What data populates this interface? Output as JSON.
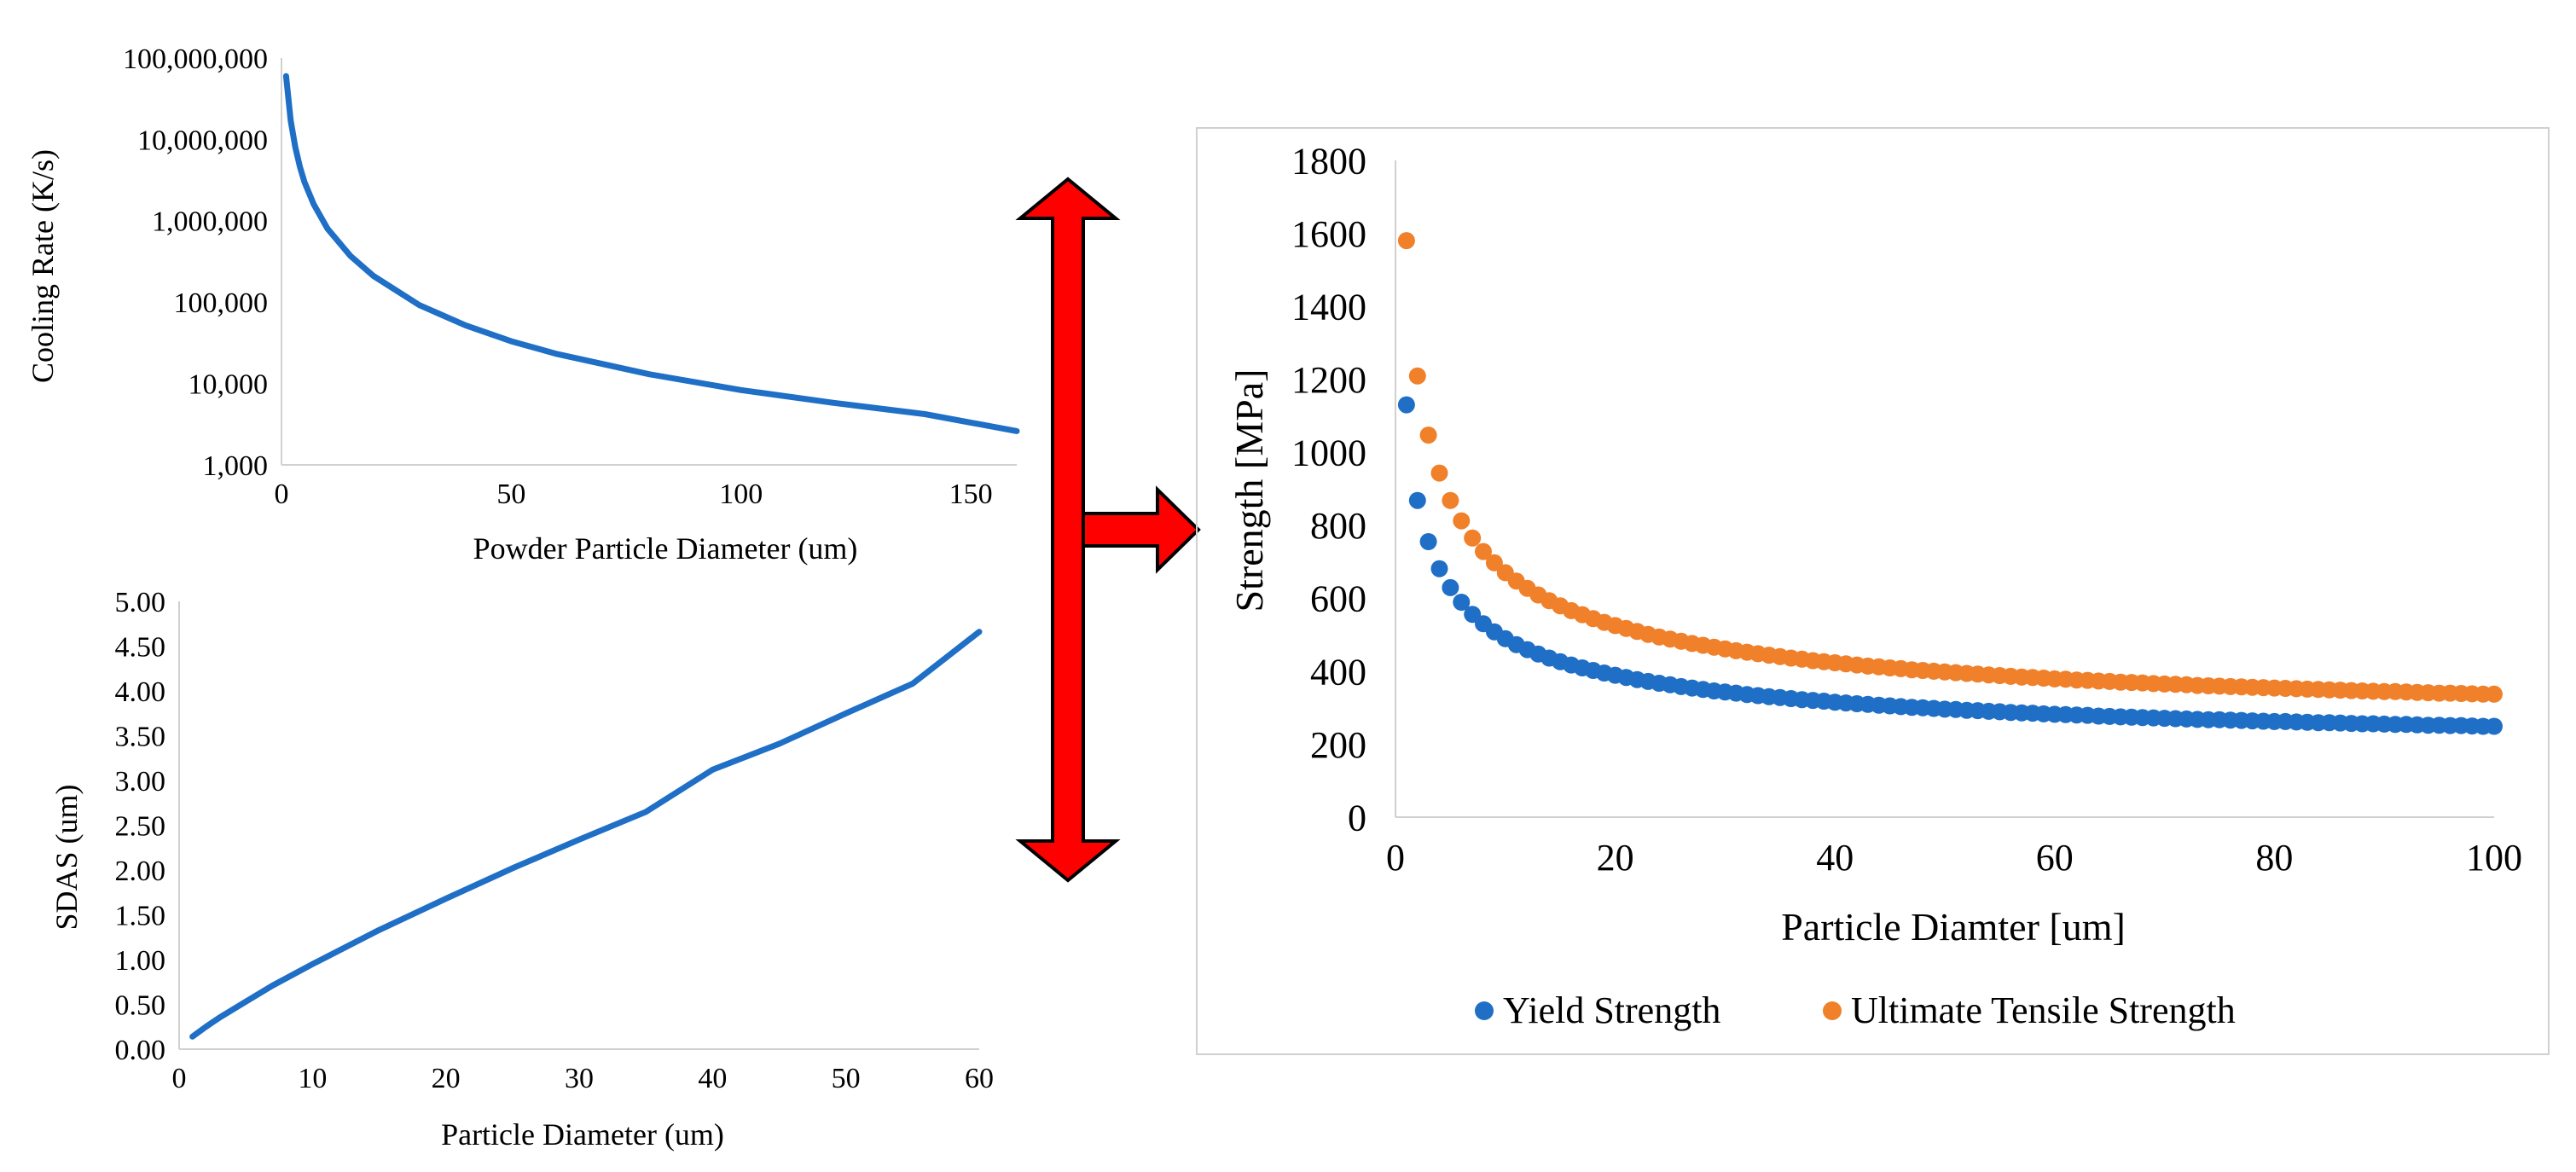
{
  "colors": {
    "primary_line": "#1f6fc6",
    "yield": "#1f6fc6",
    "uts": "#f0802a",
    "arrow_fill": "#ff0000",
    "arrow_stroke": "#000000",
    "axis": "#d0d0d0",
    "frame": "#d0d0d0"
  },
  "chart_data": [
    {
      "id": "cooling",
      "type": "line",
      "title": "",
      "xlabel": "Powder Particle Diameter (um)",
      "ylabel": "Cooling Rate (K/s)",
      "yscale": "log",
      "xlim": [
        0,
        160
      ],
      "ylim": [
        1000,
        100000000
      ],
      "xticks": [
        0,
        50,
        100,
        150
      ],
      "yticks": [
        1000,
        10000,
        100000,
        1000000,
        10000000,
        100000000
      ],
      "xtick_labels": [
        "0",
        "50",
        "100",
        "150"
      ],
      "ytick_labels": [
        "1,000",
        "10,000",
        "100,000",
        "1,000,000",
        "10,000,000",
        "100,000,000"
      ],
      "series": [
        {
          "name": "Cooling Rate",
          "x": [
            1,
            2,
            3,
            4,
            5,
            7,
            10,
            15,
            20,
            30,
            40,
            50,
            60,
            80,
            100,
            120,
            140,
            160
          ],
          "y": [
            60000000,
            17000000,
            8000000,
            4600000,
            3000000,
            1600000,
            800000,
            370000,
            210000,
            92000,
            52000,
            33000,
            23000,
            13000,
            8300,
            5800,
            4200,
            2600
          ]
        }
      ]
    },
    {
      "id": "sdas",
      "type": "line",
      "title": "",
      "xlabel": "Particle Diameter (um)",
      "ylabel": "SDAS (um)",
      "xlim": [
        0,
        60
      ],
      "ylim": [
        0,
        5
      ],
      "xticks": [
        0,
        10,
        20,
        30,
        40,
        50,
        60
      ],
      "yticks": [
        0,
        0.5,
        1,
        1.5,
        2,
        2.5,
        3,
        3.5,
        4,
        4.5,
        5
      ],
      "xtick_labels": [
        "0",
        "10",
        "20",
        "30",
        "40",
        "50",
        "60"
      ],
      "ytick_labels": [
        "0.00",
        "0.50",
        "1.00",
        "1.50",
        "2.00",
        "2.50",
        "3.00",
        "3.50",
        "4.00",
        "4.50",
        "5.00"
      ],
      "series": [
        {
          "name": "SDAS",
          "x": [
            1,
            2,
            3,
            5,
            7,
            10,
            15,
            20,
            25,
            30,
            35,
            40,
            45,
            50,
            55,
            60
          ],
          "y": [
            0.14,
            0.25,
            0.35,
            0.53,
            0.71,
            0.95,
            1.33,
            1.68,
            2.02,
            2.34,
            2.65,
            3.12,
            3.41,
            3.75,
            4.08,
            4.66
          ]
        }
      ]
    },
    {
      "id": "strength",
      "type": "scatter",
      "title": "",
      "xlabel": "Particle Diamter [um]",
      "ylabel": "Strength [MPa]",
      "xlim": [
        0,
        100
      ],
      "ylim": [
        0,
        1800
      ],
      "xticks": [
        0,
        20,
        40,
        60,
        80,
        100
      ],
      "yticks": [
        0,
        200,
        400,
        600,
        800,
        1000,
        1200,
        1400,
        1600,
        1800
      ],
      "xtick_labels": [
        "0",
        "20",
        "40",
        "60",
        "80",
        "100"
      ],
      "ytick_labels": [
        "0",
        "200",
        "400",
        "600",
        "800",
        "1000",
        "1200",
        "1400",
        "1600",
        "1800"
      ],
      "legend_position": "bottom",
      "series": [
        {
          "name": "Yield Strength",
          "color_key": "yield",
          "x": [
            1,
            2,
            3,
            4,
            5,
            6,
            7,
            8,
            9,
            10,
            11,
            12,
            13,
            14,
            15,
            16,
            17,
            18,
            19,
            20,
            21,
            22,
            23,
            24,
            25,
            26,
            27,
            28,
            29,
            30,
            31,
            32,
            33,
            34,
            35,
            36,
            37,
            38,
            39,
            40,
            41,
            42,
            43,
            44,
            45,
            46,
            47,
            48,
            49,
            50,
            51,
            52,
            53,
            54,
            55,
            56,
            57,
            58,
            59,
            60,
            61,
            62,
            63,
            64,
            65,
            66,
            67,
            68,
            69,
            70,
            71,
            72,
            73,
            74,
            75,
            76,
            77,
            78,
            79,
            80,
            81,
            82,
            83,
            84,
            85,
            86,
            87,
            88,
            89,
            90,
            91,
            92,
            93,
            94,
            95,
            96,
            97,
            98,
            99,
            100
          ],
          "y": [
            1130,
            868,
            755,
            681,
            629,
            589,
            556,
            530,
            508,
            489,
            473,
            459,
            447,
            436,
            426,
            417,
            409,
            402,
            395,
            389,
            383,
            377,
            372,
            367,
            363,
            358,
            354,
            350,
            346,
            343,
            340,
            336,
            333,
            330,
            328,
            325,
            322,
            320,
            318,
            315,
            313,
            311,
            309,
            307,
            305,
            303,
            301,
            300,
            298,
            296,
            295,
            293,
            292,
            290,
            289,
            287,
            286,
            285,
            283,
            282,
            281,
            280,
            279,
            277,
            276,
            275,
            274,
            273,
            272,
            271,
            270,
            269,
            268,
            267,
            267,
            266,
            265,
            264,
            263,
            262,
            262,
            261,
            260,
            259,
            259,
            258,
            257,
            256,
            256,
            255,
            254,
            254,
            253,
            252,
            252,
            251,
            251,
            250,
            249,
            249
          ]
        },
        {
          "name": "Ultimate Tensile Strength",
          "color_key": "uts",
          "x": [
            1,
            2,
            3,
            4,
            5,
            6,
            7,
            8,
            9,
            10,
            11,
            12,
            13,
            14,
            15,
            16,
            17,
            18,
            19,
            20,
            21,
            22,
            23,
            24,
            25,
            26,
            27,
            28,
            29,
            30,
            31,
            32,
            33,
            34,
            35,
            36,
            37,
            38,
            39,
            40,
            41,
            42,
            43,
            44,
            45,
            46,
            47,
            48,
            49,
            50,
            51,
            52,
            53,
            54,
            55,
            56,
            57,
            58,
            59,
            60,
            61,
            62,
            63,
            64,
            65,
            66,
            67,
            68,
            69,
            70,
            71,
            72,
            73,
            74,
            75,
            76,
            77,
            78,
            79,
            80,
            81,
            82,
            83,
            84,
            85,
            86,
            87,
            88,
            89,
            90,
            91,
            92,
            93,
            94,
            95,
            96,
            97,
            98,
            99,
            100
          ],
          "y": [
            1580,
            1209,
            1047,
            943,
            868,
            812,
            765,
            728,
            697,
            670,
            647,
            627,
            609,
            593,
            579,
            566,
            555,
            544,
            534,
            525,
            517,
            509,
            501,
            494,
            488,
            482,
            476,
            471,
            466,
            461,
            456,
            452,
            448,
            444,
            440,
            436,
            433,
            429,
            426,
            423,
            420,
            417,
            414,
            412,
            409,
            407,
            404,
            402,
            400,
            398,
            396,
            394,
            392,
            390,
            388,
            386,
            384,
            383,
            381,
            379,
            378,
            376,
            375,
            373,
            372,
            370,
            369,
            368,
            366,
            365,
            364,
            363,
            361,
            360,
            359,
            358,
            357,
            356,
            355,
            354,
            353,
            352,
            351,
            350,
            349,
            348,
            347,
            346,
            345,
            344,
            344,
            343,
            342,
            341,
            340,
            340,
            339,
            338,
            337,
            337
          ]
        }
      ]
    }
  ]
}
